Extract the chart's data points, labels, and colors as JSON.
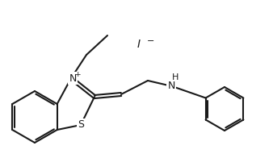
{
  "bg_color": "#ffffff",
  "line_color": "#1a1a1a",
  "line_width": 1.5,
  "text_color": "#1a1a1a",
  "font_size": 9,
  "iodide_text": "I",
  "N_label": "N",
  "S_label": "S",
  "H_label": "H",
  "plus_label": "+"
}
